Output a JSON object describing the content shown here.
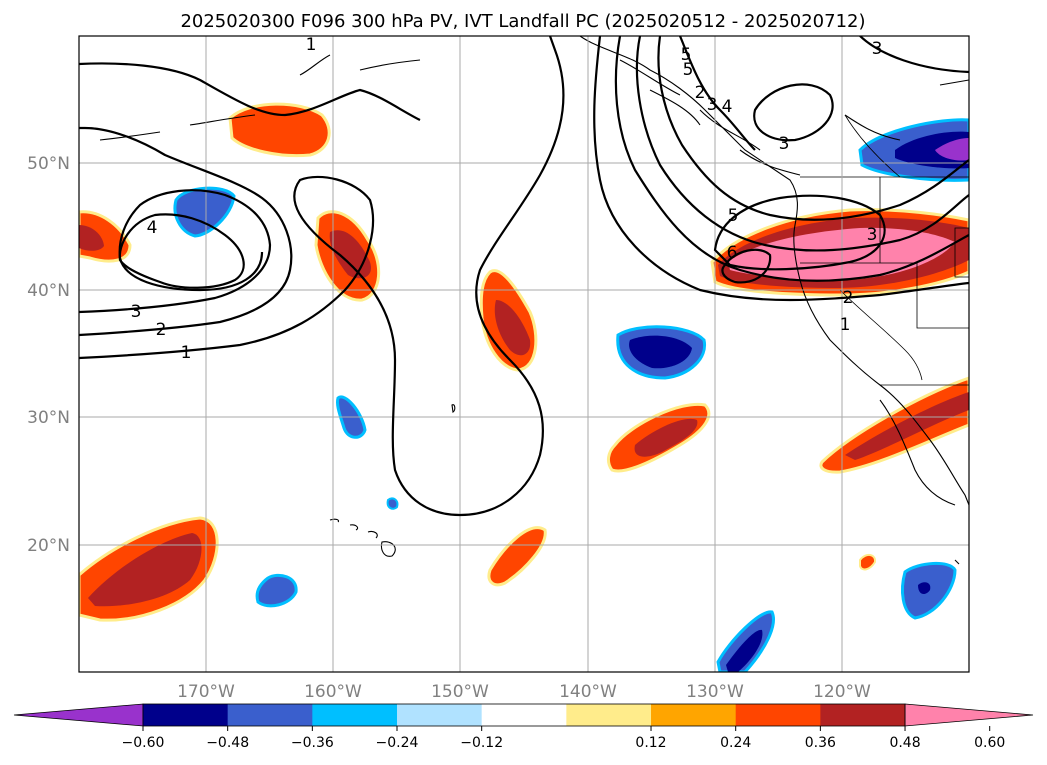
{
  "title": "2025020300 F096 300 hPa PV, IVT Landfall PC (2025020512 - 2025020712)",
  "lon_labels": [
    "170°W",
    "160°W",
    "150°W",
    "140°W",
    "130°W",
    "120°W"
  ],
  "lat_labels": [
    "50°N",
    "40°N",
    "30°N",
    "20°N"
  ],
  "colorbar": {
    "colors": [
      "#9932cc",
      "#00008b",
      "#3a5fcd",
      "#00bfff",
      "#b0e2ff",
      "#ffffff",
      "#ffec8b",
      "#ffa500",
      "#ff4500",
      "#b22222",
      "#ff82ab"
    ],
    "ticks": [
      "−0.60",
      "−0.48",
      "−0.36",
      "−0.24",
      "−0.12",
      "0.12",
      "0.24",
      "0.36",
      "0.48",
      "0.60"
    ]
  },
  "contour_labels": [
    "1",
    "2",
    "3",
    "4",
    "1",
    "2",
    "3",
    "5",
    "6",
    "3",
    "5",
    "1",
    "2",
    "3",
    "4",
    "3",
    "5"
  ]
}
